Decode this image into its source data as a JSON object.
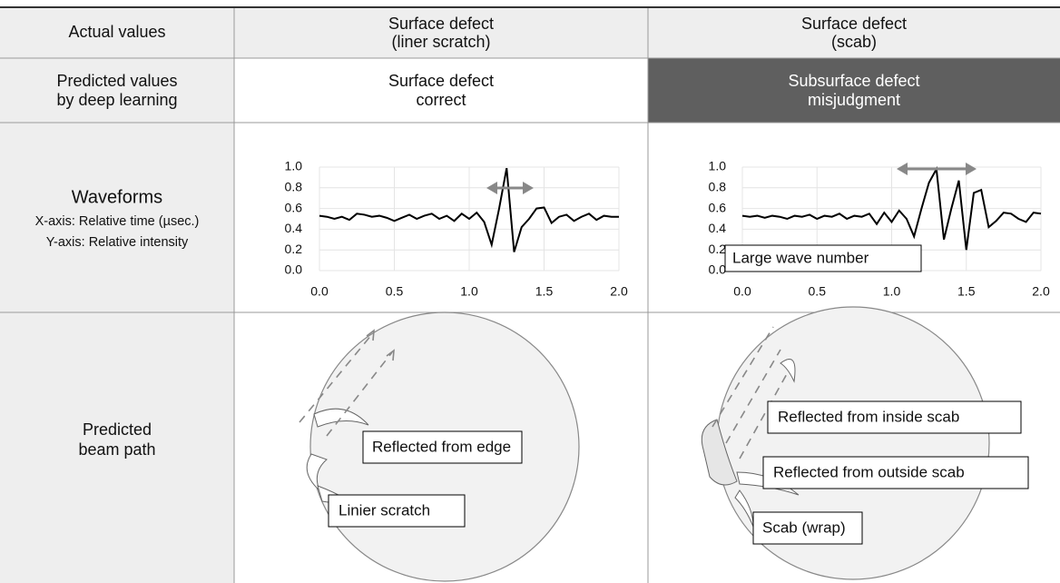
{
  "table": {
    "rows": [
      [
        [
          "Actual values"
        ],
        [
          "Surface defect",
          "(liner scratch)"
        ],
        [
          "Surface defect",
          "(scab)"
        ]
      ],
      [
        [
          "Predicted values",
          "by deep learning"
        ],
        [
          "Surface defect",
          "correct"
        ],
        [
          "Subsurface defect",
          "misjudgment"
        ]
      ],
      [
        [
          "Waveforms",
          "X-axis: Relative time (µsec.)",
          "Y-axis: Relative intensity"
        ]
      ],
      [
        [
          "Predicted",
          "beam path"
        ]
      ]
    ]
  },
  "chart_data": [
    {
      "type": "line",
      "color": "#000000",
      "grid": true,
      "xlim": [
        0,
        2
      ],
      "ylim": [
        0,
        1
      ],
      "xticks": [
        {
          "value": 0,
          "label": "0.0"
        },
        {
          "value": 0.5,
          "label": "0.5"
        },
        {
          "value": 1,
          "label": "1.0"
        },
        {
          "value": 1.5,
          "label": "1.5"
        },
        {
          "value": 2,
          "label": "2.0"
        }
      ],
      "yticks": [
        {
          "value": 0,
          "label": "0.0"
        },
        {
          "value": 0.2,
          "label": "0.2"
        },
        {
          "value": 0.4,
          "label": "0.4"
        },
        {
          "value": 0.6,
          "label": "0.6"
        },
        {
          "value": 0.8,
          "label": "0.8"
        },
        {
          "value": 1,
          "label": "1.0"
        }
      ],
      "x": [
        0,
        0.05,
        0.1,
        0.15,
        0.2,
        0.25,
        0.3,
        0.35,
        0.4,
        0.45,
        0.5,
        0.55,
        0.6,
        0.65,
        0.7,
        0.75,
        0.8,
        0.85,
        0.9,
        0.95,
        1,
        1.05,
        1.1,
        1.15,
        1.2,
        1.25,
        1.3,
        1.35,
        1.4,
        1.45,
        1.5,
        1.55,
        1.6,
        1.65,
        1.7,
        1.75,
        1.8,
        1.85,
        1.9,
        1.95,
        2
      ],
      "values": [
        0.53,
        0.52,
        0.5,
        0.52,
        0.49,
        0.55,
        0.54,
        0.52,
        0.53,
        0.51,
        0.48,
        0.51,
        0.54,
        0.5,
        0.53,
        0.55,
        0.5,
        0.53,
        0.48,
        0.55,
        0.5,
        0.56,
        0.47,
        0.25,
        0.6,
        0.99,
        0.18,
        0.42,
        0.5,
        0.6,
        0.61,
        0.46,
        0.52,
        0.54,
        0.48,
        0.52,
        0.55,
        0.49,
        0.53,
        0.52,
        0.52
      ]
    },
    {
      "type": "line",
      "color": "#000000",
      "grid": true,
      "xlim": [
        0,
        2
      ],
      "ylim": [
        0,
        1
      ],
      "xticks": [
        {
          "value": 0,
          "label": "0.0"
        },
        {
          "value": 0.5,
          "label": "0.5"
        },
        {
          "value": 1,
          "label": "1.0"
        },
        {
          "value": 1.5,
          "label": "1.5"
        },
        {
          "value": 2,
          "label": "2.0"
        }
      ],
      "yticks": [
        {
          "value": 0,
          "label": "0.0"
        },
        {
          "value": 0.2,
          "label": "0.2"
        },
        {
          "value": 0.4,
          "label": "0.4"
        },
        {
          "value": 0.6,
          "label": "0.6"
        },
        {
          "value": 0.8,
          "label": "0.8"
        },
        {
          "value": 1,
          "label": "1.0"
        }
      ],
      "x": [
        0,
        0.05,
        0.1,
        0.15,
        0.2,
        0.25,
        0.3,
        0.35,
        0.4,
        0.45,
        0.5,
        0.55,
        0.6,
        0.65,
        0.7,
        0.75,
        0.8,
        0.85,
        0.9,
        0.95,
        1,
        1.05,
        1.1,
        1.15,
        1.2,
        1.25,
        1.3,
        1.35,
        1.4,
        1.45,
        1.5,
        1.55,
        1.6,
        1.65,
        1.7,
        1.75,
        1.8,
        1.85,
        1.9,
        1.95,
        2
      ],
      "values": [
        0.53,
        0.52,
        0.53,
        0.51,
        0.53,
        0.52,
        0.5,
        0.53,
        0.52,
        0.54,
        0.5,
        0.53,
        0.52,
        0.55,
        0.5,
        0.53,
        0.52,
        0.55,
        0.45,
        0.56,
        0.47,
        0.58,
        0.5,
        0.33,
        0.6,
        0.85,
        0.98,
        0.3,
        0.6,
        0.87,
        0.2,
        0.75,
        0.78,
        0.42,
        0.48,
        0.56,
        0.55,
        0.5,
        0.47,
        0.56,
        0.55
      ],
      "annotation": "Large wave number"
    }
  ],
  "diagrams": [
    {
      "labels": [
        "Reflected from edge",
        "Linier scratch"
      ]
    },
    {
      "labels": [
        "Reflected from inside scab",
        "Reflected from outside scab",
        "Scab (wrap)"
      ]
    }
  ]
}
